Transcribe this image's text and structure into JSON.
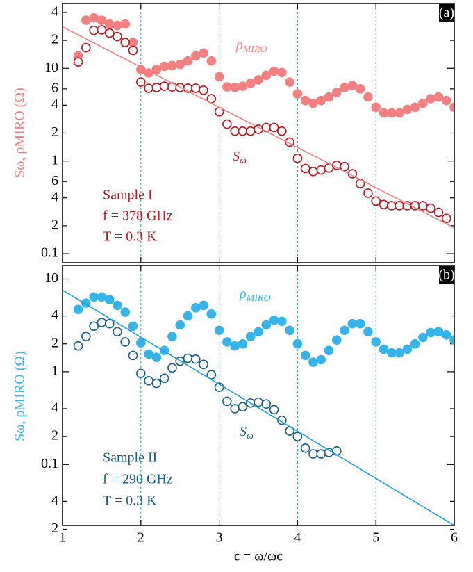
{
  "chart_data": [
    {
      "type": "scatter",
      "panel_label": "(a)",
      "ylabel": "Sω, ρMIRO (Ω)",
      "log_y": true,
      "grid": "x",
      "grid_color": "#2a9d8f",
      "xlim": [
        1,
        6
      ],
      "xticks": [
        1,
        2,
        3,
        4,
        5,
        6
      ],
      "ylim": [
        0.08,
        50
      ],
      "yticks": [
        {
          "value": 40,
          "label": "4"
        },
        {
          "value": 20,
          "label": "2"
        },
        10,
        {
          "value": 6,
          "label": "6"
        },
        {
          "value": 4,
          "label": "4"
        },
        {
          "value": 2,
          "label": "2"
        },
        1,
        {
          "value": 0.6,
          "label": "6"
        },
        {
          "value": 0.4,
          "label": "4"
        },
        {
          "value": 0.2,
          "label": "2"
        },
        0.1
      ],
      "annotations": [
        "Sample I",
        "f = 378 GHz",
        "T = 0.3 K"
      ],
      "annotation_color": "#c1121f",
      "series": [
        {
          "name": "ρMIRO",
          "color": "#f28080",
          "marker": "filled",
          "x": [
            1.2,
            1.3,
            1.4,
            1.5,
            1.6,
            1.7,
            1.8,
            1.9,
            2.0,
            2.1,
            2.2,
            2.3,
            2.4,
            2.5,
            2.6,
            2.7,
            2.8,
            2.9,
            3.0,
            3.1,
            3.2,
            3.3,
            3.4,
            3.5,
            3.6,
            3.7,
            3.8,
            3.9,
            4.0,
            4.1,
            4.2,
            4.3,
            4.4,
            4.5,
            4.6,
            4.7,
            4.8,
            4.9,
            5.0,
            5.1,
            5.2,
            5.3,
            5.4,
            5.5,
            5.6,
            5.7,
            5.8,
            5.9,
            6.0
          ],
          "values": [
            13.6,
            33,
            35,
            33,
            30,
            29,
            30,
            19,
            9.7,
            8.9,
            9.7,
            10.5,
            10.7,
            11,
            12,
            13.6,
            14.6,
            12,
            8.1,
            6.3,
            6.2,
            6.4,
            6.9,
            7.5,
            8.4,
            9.3,
            9.0,
            7.1,
            5.3,
            4.5,
            4.2,
            4.5,
            4.9,
            5.5,
            6.2,
            6.5,
            6.0,
            4.9,
            3.8,
            3.3,
            3.3,
            3.3,
            3.6,
            3.8,
            4.2,
            4.7,
            4.9,
            4.5,
            3.8
          ]
        },
        {
          "name": "Sω",
          "color": "#c1121f",
          "marker": "open",
          "x": [
            1.2,
            1.3,
            1.4,
            1.5,
            1.6,
            1.7,
            1.8,
            1.9,
            2.0,
            2.1,
            2.2,
            2.3,
            2.4,
            2.5,
            2.6,
            2.7,
            2.8,
            2.9,
            3.0,
            3.1,
            3.2,
            3.3,
            3.4,
            3.5,
            3.6,
            3.7,
            3.8,
            3.9,
            4.0,
            4.1,
            4.2,
            4.3,
            4.4,
            4.5,
            4.6,
            4.7,
            4.8,
            4.9,
            5.0,
            5.1,
            5.2,
            5.3,
            5.4,
            5.5,
            5.6,
            5.7,
            5.8,
            5.9
          ],
          "values": [
            11.7,
            16.7,
            25.7,
            26,
            24,
            22,
            19,
            15.6,
            7.1,
            6.1,
            6.2,
            6.4,
            6.3,
            6.2,
            6.1,
            6.1,
            5.8,
            4.7,
            3.4,
            2.5,
            2.1,
            2.1,
            2.1,
            2.2,
            2.3,
            2.3,
            2.1,
            1.6,
            1.07,
            0.83,
            0.77,
            0.8,
            0.84,
            0.9,
            0.87,
            0.73,
            0.57,
            0.45,
            0.37,
            0.34,
            0.33,
            0.33,
            0.33,
            0.33,
            0.33,
            0.31,
            0.28,
            0.24
          ]
        },
        {
          "color": "#f28080",
          "marker": "line",
          "x": [
            1,
            6
          ],
          "values": [
            28,
            0.19
          ]
        }
      ]
    },
    {
      "type": "scatter",
      "panel_label": "(b)",
      "ylabel": "Sω, ρMIRO (Ω)",
      "xlabel": "ϵ = ω/ωc",
      "log_y": true,
      "grid": "x",
      "grid_color": "#2a9d8f",
      "xlim": [
        1,
        6
      ],
      "xticks": [
        1,
        2,
        3,
        4,
        5,
        6
      ],
      "ylim": [
        0.022,
        14
      ],
      "yticks": [
        10,
        {
          "value": 4,
          "label": "4"
        },
        {
          "value": 2,
          "label": "2"
        },
        1,
        {
          "value": 0.4,
          "label": "4"
        },
        {
          "value": 0.2,
          "label": "2"
        },
        0.1,
        {
          "value": 0.04,
          "label": "4"
        },
        {
          "value": 0.02,
          "label": "2"
        }
      ],
      "annotations": [
        "Sample II",
        "f = 290 GHz",
        "T = 0.3 K"
      ],
      "annotation_color": "#155f80",
      "series": [
        {
          "name": "ρMIRO",
          "color": "#34b4e8",
          "marker": "filled",
          "x": [
            1.2,
            1.3,
            1.4,
            1.5,
            1.6,
            1.7,
            1.8,
            1.9,
            2.0,
            2.1,
            2.2,
            2.3,
            2.4,
            2.5,
            2.6,
            2.7,
            2.8,
            2.9,
            3.0,
            3.1,
            3.2,
            3.3,
            3.4,
            3.5,
            3.6,
            3.7,
            3.8,
            3.9,
            4.0,
            4.1,
            4.2,
            4.3,
            4.4,
            4.5,
            4.6,
            4.7,
            4.8,
            4.9,
            5.0,
            5.1,
            5.2,
            5.3,
            5.4,
            5.5,
            5.6,
            5.7,
            5.8,
            5.9,
            6.0
          ],
          "values": [
            4.7,
            5.5,
            6.4,
            6.4,
            6.0,
            5.2,
            4.4,
            3.1,
            2.05,
            1.55,
            1.43,
            1.7,
            2.4,
            3.2,
            4.0,
            4.9,
            5.2,
            4.2,
            2.8,
            2.1,
            1.9,
            2.0,
            2.4,
            2.7,
            3.2,
            3.6,
            3.5,
            2.8,
            2.0,
            1.5,
            1.27,
            1.35,
            1.7,
            2.2,
            2.8,
            3.3,
            3.3,
            2.7,
            2.1,
            1.75,
            1.6,
            1.6,
            1.75,
            2.0,
            2.35,
            2.65,
            2.7,
            2.5,
            2.2
          ]
        },
        {
          "name": "Sω",
          "color": "#155f80",
          "marker": "open",
          "x": [
            1.2,
            1.3,
            1.4,
            1.5,
            1.6,
            1.7,
            1.8,
            1.9,
            2.0,
            2.1,
            2.2,
            2.3,
            2.4,
            2.5,
            2.6,
            2.7,
            2.8,
            2.9,
            3.0,
            3.1,
            3.2,
            3.3,
            3.4,
            3.5,
            3.6,
            3.7,
            3.8,
            3.9,
            4.0,
            4.1,
            4.2,
            4.3,
            4.4,
            4.5
          ],
          "values": [
            1.9,
            2.4,
            3.1,
            3.4,
            3.3,
            2.7,
            2.1,
            1.5,
            0.96,
            0.8,
            0.75,
            0.85,
            1.1,
            1.3,
            1.4,
            1.37,
            1.2,
            0.93,
            0.68,
            0.48,
            0.4,
            0.42,
            0.46,
            0.47,
            0.45,
            0.39,
            0.3,
            0.23,
            0.2,
            0.15,
            0.13,
            0.13,
            0.135,
            0.14
          ]
        },
        {
          "color": "#1ea0e0",
          "marker": "line",
          "x": [
            1,
            6
          ],
          "values": [
            7.6,
            0.022
          ]
        }
      ]
    }
  ]
}
